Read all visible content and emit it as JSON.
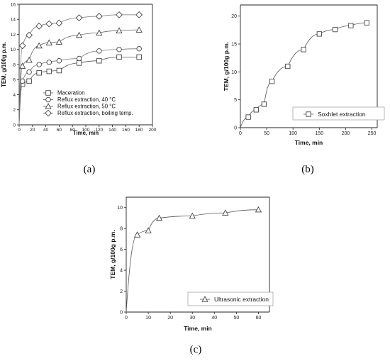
{
  "chart_data": [
    {
      "panel": "(a)",
      "type": "line",
      "xlabel": "Time, min",
      "ylabel": "TEM, g/100g p.m.",
      "xlim": [
        0,
        200
      ],
      "ylim": [
        0,
        16
      ],
      "xticks": [
        "0",
        "20",
        "40",
        "60",
        "80",
        "100",
        "120",
        "140",
        "160",
        "180",
        "200"
      ],
      "yticks": [
        "0",
        "2",
        "4",
        "6",
        "8",
        "10",
        "12",
        "14",
        "16"
      ],
      "grid": false,
      "legend_position": "lower-right",
      "x": [
        0,
        5,
        15,
        30,
        45,
        60,
        90,
        120,
        150,
        180
      ],
      "series": [
        {
          "name": "Maceration",
          "marker": "square",
          "values": [
            0,
            5.4,
            5.8,
            6.9,
            7.1,
            7.2,
            8.2,
            8.5,
            9.0,
            9.0
          ]
        },
        {
          "name": "Reflux extraction, 40 °C",
          "marker": "circle",
          "values": [
            0,
            5.8,
            7.0,
            8.0,
            8.3,
            8.5,
            8.8,
            9.8,
            10.0,
            10.1
          ]
        },
        {
          "name": "Reflux extraction, 50 °C",
          "marker": "triangle",
          "values": [
            0,
            7.8,
            8.6,
            10.5,
            10.9,
            11.0,
            11.9,
            12.2,
            12.5,
            12.6
          ]
        },
        {
          "name": "Reflux extraction, boiling temp.",
          "marker": "diamond",
          "values": [
            0,
            10.5,
            11.9,
            13.1,
            13.4,
            13.5,
            14.2,
            14.4,
            14.6,
            14.6
          ]
        }
      ]
    },
    {
      "panel": "(b)",
      "type": "line",
      "xlabel": "Time, min",
      "ylabel": "TEM, g/100g p.m.",
      "xlim": [
        0,
        260
      ],
      "ylim": [
        0,
        22
      ],
      "xticks": [
        "0",
        "50",
        "100",
        "150",
        "200",
        "250"
      ],
      "yticks": [
        "0",
        "5",
        "10",
        "15",
        "20"
      ],
      "grid": false,
      "legend_position": "right",
      "x": [
        0,
        15,
        30,
        45,
        60,
        90,
        120,
        150,
        180,
        210,
        240
      ],
      "series": [
        {
          "name": "Soxhlet extraction",
          "marker": "square",
          "values": [
            0,
            1.9,
            3.2,
            4.2,
            8.3,
            11.0,
            14.0,
            16.8,
            17.6,
            18.3,
            18.8
          ]
        }
      ]
    },
    {
      "panel": "(c)",
      "type": "line",
      "xlabel": "Time, min",
      "ylabel": "TEM, g/100g p.m.",
      "xlim": [
        0,
        65
      ],
      "ylim": [
        0,
        11
      ],
      "xticks": [
        "0",
        "10",
        "20",
        "30",
        "40",
        "50",
        "60"
      ],
      "yticks": [
        "0",
        "2",
        "4",
        "6",
        "8",
        "10"
      ],
      "grid": false,
      "legend_position": "lower-right",
      "x": [
        0,
        5,
        10,
        15,
        30,
        45,
        60
      ],
      "series": [
        {
          "name": "Ultrasonic extraction",
          "marker": "triangle",
          "values": [
            0,
            7.4,
            7.8,
            9.0,
            9.2,
            9.5,
            9.8
          ]
        }
      ]
    }
  ],
  "captions": [
    "(a)",
    "(b)",
    "(c)"
  ]
}
